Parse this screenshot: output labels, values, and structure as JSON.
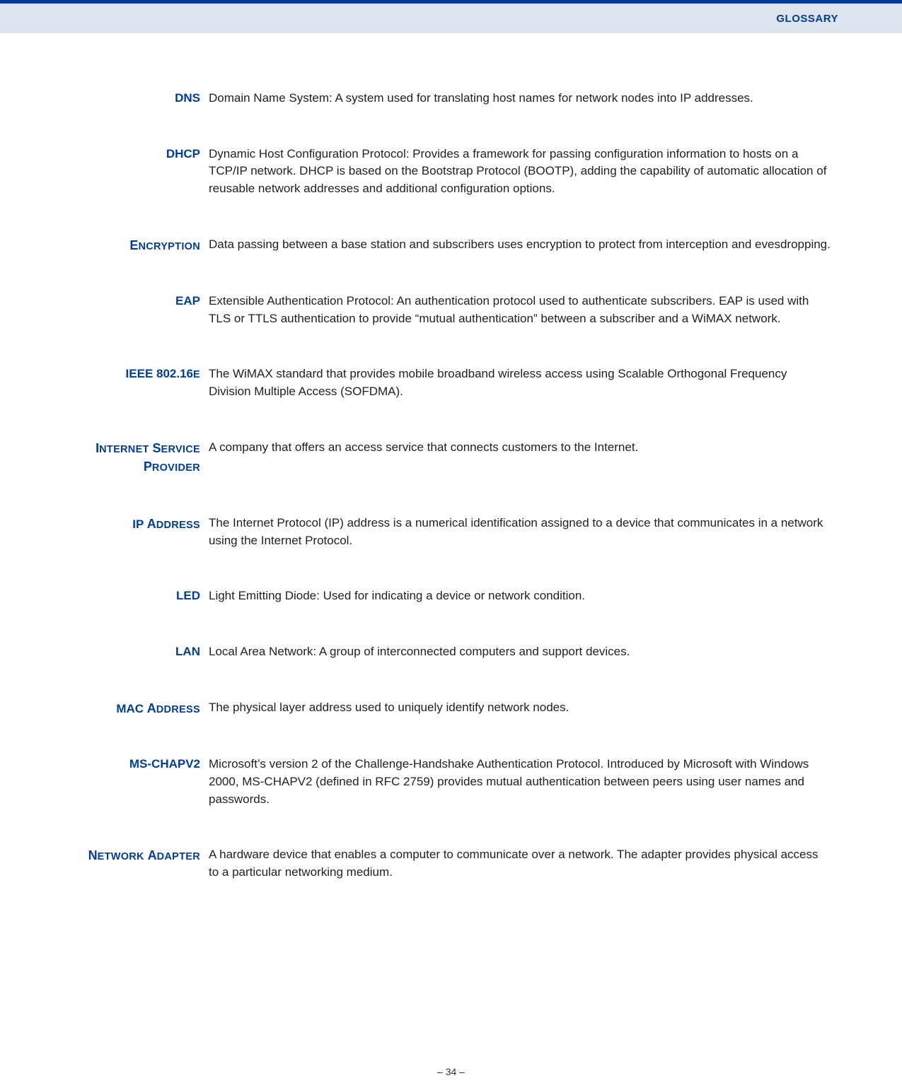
{
  "header": {
    "title": "GLOSSARY"
  },
  "colors": {
    "accent": "#003d99",
    "header_bg": "#dce4ed",
    "text": "#222222"
  },
  "entries": [
    {
      "term_html": "DNS",
      "definition": "Domain Name System: A system used for translating host names for network nodes into IP addresses."
    },
    {
      "term_html": "DHCP",
      "definition": "Dynamic Host Configuration Protocol: Provides a framework for passing configuration information to hosts on a TCP/IP network. DHCP is based on the Bootstrap Protocol (BOOTP), adding the capability of automatic allocation of reusable network addresses and additional configuration options."
    },
    {
      "term_html": "<span class='cap'>E</span><span class='sc'>NCRYPTION</span>",
      "definition": "Data passing between a base station and subscribers uses encryption to protect from interception and evesdropping."
    },
    {
      "term_html": "EAP",
      "definition": "Extensible Authentication Protocol: An authentication protocol used to authenticate subscribers. EAP is used with TLS or TTLS authentication to provide “mutual authentication” between a subscriber and a WiMAX network."
    },
    {
      "term_html": "IEEE 802.16<span class='sc'>E</span>",
      "definition": "The WiMAX standard that provides mobile broadband wireless access using Scalable Orthogonal Frequency Division Multiple Access (SOFDMA)."
    },
    {
      "term_html": "<span class='cap'>I</span><span class='sc'>NTERNET</span> <span class='cap'>S</span><span class='sc'>ERVICE</span> <span class='cap'>P</span><span class='sc'>ROVIDER</span>",
      "definition": "A company that offers an access service that connects customers to the Internet."
    },
    {
      "term_html": "IP <span class='cap'>A</span><span class='sc'>DDRESS</span>",
      "definition": "The Internet Protocol (IP) address is a numerical identification assigned to a device that communicates in a network using the Internet Protocol."
    },
    {
      "term_html": "LED",
      "definition": "Light Emitting Diode: Used for indicating a device or network condition."
    },
    {
      "term_html": "LAN",
      "definition": "Local Area Network: A group of interconnected computers and support devices."
    },
    {
      "term_html": "MAC <span class='cap'>A</span><span class='sc'>DDRESS</span>",
      "definition": "The physical layer address used to uniquely identify network nodes."
    },
    {
      "term_html": "MS-CHAPV2",
      "definition": "Microsoft’s version 2 of the Challenge-Handshake Authentication Protocol. Introduced by Microsoft with Windows 2000, MS-CHAPV2 (defined in RFC 2759) provides mutual authentication between peers using user names and passwords."
    },
    {
      "term_html": "<span class='cap'>N</span><span class='sc'>ETWORK</span> <span class='cap'>A</span><span class='sc'>DAPTER</span>",
      "definition": "A hardware device that enables a computer to communicate over a network. The adapter provides physical access to a particular networking medium."
    }
  ],
  "footer": {
    "page_number": "–  34  –"
  }
}
